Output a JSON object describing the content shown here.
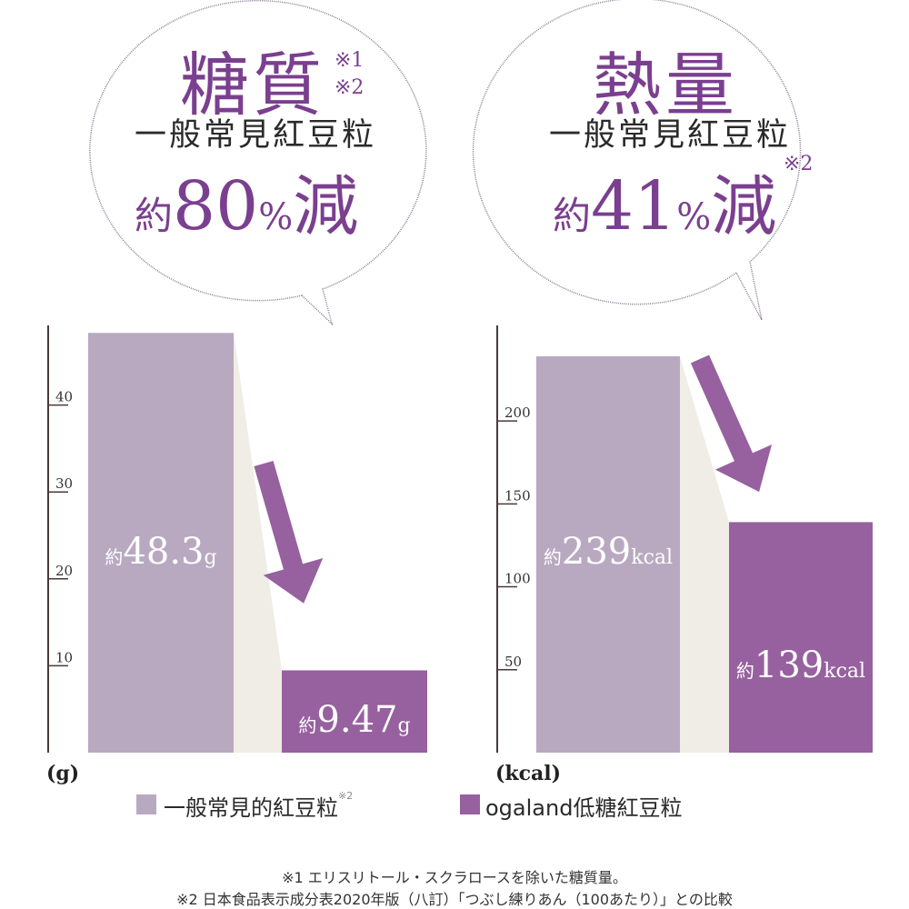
{
  "colors": {
    "general": "#b8a9c0",
    "ogaland": "#96619e",
    "purple_text": "#7b3f8f",
    "shadow": "#efede6"
  },
  "bubble_left": {
    "title": "糖質",
    "notes": [
      "※1",
      "※2"
    ],
    "subject": "一般常見紅豆粒",
    "prefix": "約",
    "value": "80",
    "unit": "%",
    "suffix": "減"
  },
  "bubble_right": {
    "title": "熱量",
    "note": "※2",
    "subject": "一般常見紅豆粒",
    "prefix": "約",
    "value": "41",
    "unit": "%",
    "suffix": "減"
  },
  "chart_data": [
    {
      "type": "bar",
      "unit": "(g)",
      "ylim": [
        0,
        50
      ],
      "yticks": [
        10,
        20,
        30,
        40
      ],
      "series": [
        {
          "name": "一般常見的紅豆粒",
          "value": 48.3,
          "label_prefix": "約",
          "label_value": "48.3",
          "label_unit": "g"
        },
        {
          "name": "ogaland低糖紅豆粒",
          "value": 9.47,
          "label_prefix": "約",
          "label_value": "9.47",
          "label_unit": "g"
        }
      ]
    },
    {
      "type": "bar",
      "unit": "(kcal)",
      "ylim": [
        0,
        262
      ],
      "yticks": [
        50,
        100,
        150,
        200
      ],
      "series": [
        {
          "name": "一般常見的紅豆粒",
          "value": 239,
          "label_prefix": "約",
          "label_value": "239",
          "label_unit": "kcal"
        },
        {
          "name": "ogaland低糖紅豆粒",
          "value": 139,
          "label_prefix": "約",
          "label_value": "139",
          "label_unit": "kcal"
        }
      ]
    }
  ],
  "legend": [
    {
      "label": "一般常見的紅豆粒",
      "note": "※2"
    },
    {
      "label": "ogaland低糖紅豆粒"
    }
  ],
  "footnotes": [
    "※1 エリスリトール・スクラロースを除いた糖質量。",
    "※2 日本食品表示成分表2020年版（八訂）「つぶし練りあん（100あたり）」との比較"
  ]
}
